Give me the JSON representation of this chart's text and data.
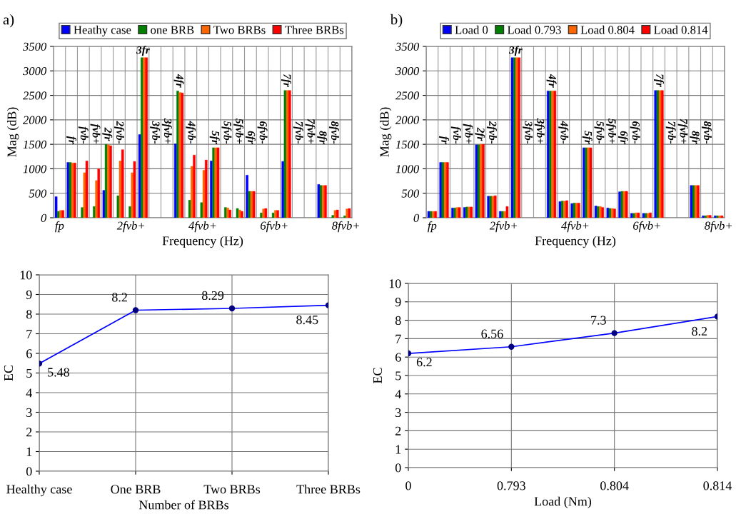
{
  "chart_data": [
    {
      "type": "bar",
      "title": "a)",
      "xlabel": "Frequency (Hz)",
      "ylabel": "Mag (dB)",
      "categories": [
        "fp",
        null,
        null,
        null,
        null,
        null,
        "2fvb+",
        null,
        null,
        null,
        null,
        null,
        "4fvb+",
        null,
        null,
        null,
        null,
        null,
        "6fvb+",
        null,
        null,
        null,
        null,
        null,
        "8fvb+"
      ],
      "series": [
        {
          "name": "Heathy case",
          "color": "#0000ff",
          "values": [
            430,
            1130,
            null,
            null,
            560,
            null,
            null,
            1700,
            null,
            null,
            1510,
            null,
            null,
            1160,
            null,
            null,
            870,
            null,
            null,
            1150,
            null,
            null,
            680,
            null,
            null
          ]
        },
        {
          "name": "one BRB",
          "color": "#008000",
          "values": [
            130,
            1130,
            210,
            230,
            1500,
            450,
            230,
            3270,
            null,
            null,
            2590,
            360,
            310,
            1430,
            210,
            190,
            540,
            100,
            100,
            2600,
            null,
            null,
            660,
            50,
            40
          ]
        },
        {
          "name": "Two BRBs",
          "color": "#ff6600",
          "values": [
            150,
            1120,
            920,
            760,
            1490,
            1160,
            920,
            3270,
            null,
            null,
            2560,
            1050,
            970,
            1430,
            200,
            160,
            540,
            180,
            150,
            2600,
            null,
            null,
            660,
            150,
            180
          ]
        },
        {
          "name": "Three BRBs",
          "color": "#ff0000",
          "values": [
            150,
            1120,
            1160,
            1000,
            1470,
            1390,
            1150,
            3270,
            null,
            null,
            2550,
            1280,
            1180,
            1430,
            160,
            130,
            540,
            190,
            150,
            2600,
            null,
            null,
            660,
            160,
            190
          ]
        }
      ],
      "ylim": [
        0,
        3500
      ],
      "yticks": [
        0,
        500,
        1000,
        1500,
        2000,
        2500,
        3000,
        3500
      ],
      "grid": true,
      "legend": "top",
      "annotations": [
        "fr",
        "fvb-",
        "fvb+",
        "2fr",
        "2fvb-",
        "3fr",
        "3fvb-",
        "3fvb+",
        "4fr",
        "4fvb-",
        "5fr",
        "5fvb-",
        "5fvb+",
        "6fr",
        "6fvb-",
        "7fr",
        "7fvb-",
        "7fvb+",
        "8fr",
        "8fvb-"
      ]
    },
    {
      "type": "bar",
      "title": "b)",
      "xlabel": "Frequency (Hz)",
      "ylabel": "Mag (dB)",
      "categories": [
        "fp",
        null,
        null,
        null,
        null,
        null,
        "2fvb+",
        null,
        null,
        null,
        null,
        null,
        "4fvb+",
        null,
        null,
        null,
        null,
        null,
        "6fvb+",
        null,
        null,
        null,
        null,
        null,
        "8fvb+"
      ],
      "series": [
        {
          "name": "Load 0",
          "color": "#0000ff",
          "values": [
            130,
            1130,
            200,
            210,
            1490,
            440,
            130,
            3270,
            null,
            null,
            2590,
            330,
            290,
            1430,
            240,
            200,
            530,
            90,
            90,
            2600,
            null,
            null,
            660,
            40,
            40
          ]
        },
        {
          "name": "Load 0.793",
          "color": "#008000",
          "values": [
            130,
            1130,
            200,
            220,
            1490,
            440,
            130,
            3270,
            null,
            null,
            2590,
            340,
            300,
            1430,
            230,
            190,
            540,
            90,
            90,
            2600,
            null,
            null,
            660,
            40,
            40
          ]
        },
        {
          "name": "Load 0.804",
          "color": "#ff6600",
          "values": [
            130,
            1130,
            210,
            220,
            1500,
            440,
            130,
            3270,
            null,
            null,
            2590,
            340,
            300,
            1430,
            230,
            190,
            540,
            100,
            90,
            2600,
            null,
            null,
            660,
            50,
            40
          ]
        },
        {
          "name": "Load 0.814",
          "color": "#ff0000",
          "values": [
            130,
            1130,
            210,
            220,
            1500,
            450,
            230,
            3270,
            null,
            null,
            2590,
            350,
            300,
            1430,
            210,
            180,
            540,
            100,
            100,
            2600,
            null,
            null,
            660,
            50,
            40
          ]
        }
      ],
      "ylim": [
        0,
        3500
      ],
      "yticks": [
        0,
        500,
        1000,
        1500,
        2000,
        2500,
        3000,
        3500
      ],
      "grid": true,
      "legend": "top",
      "annotations": [
        "fr",
        "fvb-",
        "fvb+",
        "2fr",
        "2fvb-",
        "3fr",
        "3fvb-",
        "3fvb+",
        "4fr",
        "4fvb-",
        "5fr",
        "5fvb-",
        "5fvb+",
        "6fr",
        "6fvb-",
        "7fr",
        "7fvb-",
        "7fvb+",
        "8fr",
        "8fvb-"
      ]
    },
    {
      "type": "line",
      "xlabel": "Number of BRBs",
      "ylabel": "EC",
      "categories": [
        "Healthy case",
        "One BRB",
        "Two BRBs",
        "Three BRBs"
      ],
      "series": [
        {
          "color": "#0000ff",
          "values": [
            5.48,
            8.2,
            8.29,
            8.45
          ]
        }
      ],
      "ylim": [
        0,
        10
      ],
      "yticks": [
        0,
        1,
        2,
        3,
        4,
        5,
        6,
        7,
        8,
        9,
        10
      ],
      "grid": true,
      "marker": "circle",
      "data_labels": true
    },
    {
      "type": "line",
      "xlabel": "Load (Nm)",
      "ylabel": "EC",
      "categories": [
        "0",
        "0.793",
        "0.804",
        "0.814"
      ],
      "series": [
        {
          "color": "#0000ff",
          "values": [
            6.2,
            6.56,
            7.3,
            8.2
          ]
        }
      ],
      "ylim": [
        0,
        10
      ],
      "yticks": [
        0,
        1,
        2,
        3,
        4,
        5,
        6,
        7,
        8,
        9,
        10
      ],
      "grid": true,
      "marker": "circle",
      "data_labels": true
    }
  ]
}
